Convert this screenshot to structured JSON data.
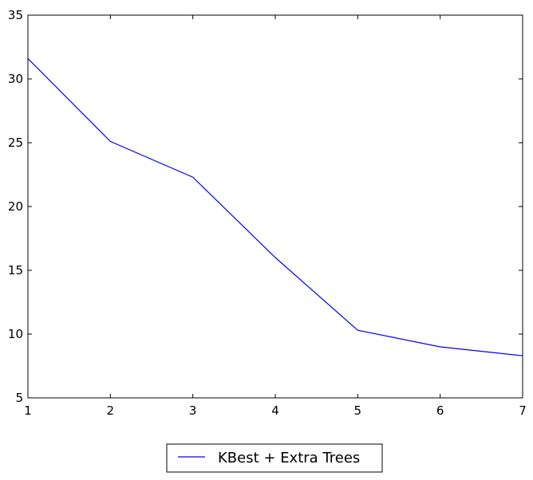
{
  "chart_data": {
    "type": "line",
    "title": "",
    "xlabel": "",
    "ylabel": "",
    "xlim": [
      1,
      7
    ],
    "ylim": [
      5,
      35
    ],
    "xticks": [
      1,
      2,
      3,
      4,
      5,
      6,
      7
    ],
    "yticks": [
      5,
      10,
      15,
      20,
      25,
      30,
      35
    ],
    "grid": false,
    "legend_position": "bottom-center, outside plot",
    "x": [
      1,
      2,
      3,
      4,
      5,
      6,
      7
    ],
    "series": [
      {
        "name": "KBest + Extra Trees",
        "color": "#0000ff",
        "values": [
          31.6,
          25.1,
          22.3,
          16.0,
          10.3,
          9.0,
          8.3
        ]
      }
    ]
  }
}
